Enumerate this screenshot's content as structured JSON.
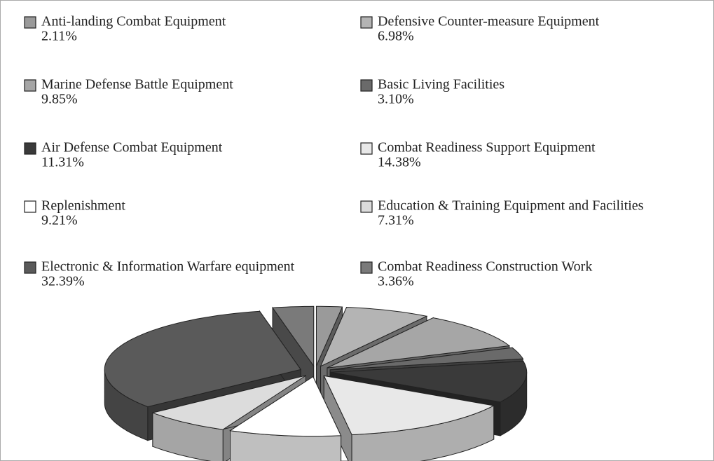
{
  "chart_data": {
    "type": "pie",
    "categories": [
      "Anti-landing Combat Equipment",
      "Defensive Counter-measure Equipment",
      "Marine Defense Battle Equipment",
      "Basic Living Facilities",
      "Air Defense Combat Equipment",
      "Combat Readiness Support Equipment",
      "Replenishment",
      "Education & Training Equipment and Facilities",
      "Electronic & Information Warfare equipment",
      "Combat Readiness Construction Work"
    ],
    "values": [
      2.11,
      6.98,
      9.85,
      3.1,
      11.31,
      14.38,
      9.21,
      7.31,
      32.39,
      3.36
    ],
    "value_labels": [
      "2.11%",
      "6.98%",
      "9.85%",
      "3.10%",
      "11.31%",
      "14.38%",
      "9.21%",
      "7.31%",
      "32.39%",
      "3.36%"
    ],
    "colors": [
      "#9a9a9a",
      "#b4b4b4",
      "#a6a6a6",
      "#6a6a6a",
      "#3a3a3a",
      "#e8e8e8",
      "#ffffff",
      "#dcdcdc",
      "#5a5a5a",
      "#7a7a7a"
    ]
  }
}
